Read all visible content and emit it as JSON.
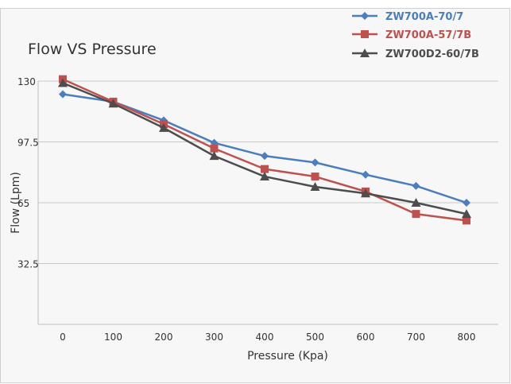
{
  "chart_data": {
    "type": "line",
    "title": "Flow VS Pressure",
    "xlabel": "Pressure (Kpa)",
    "ylabel": "Flow (Lpm)",
    "categories": [
      "0",
      "100",
      "200",
      "300",
      "400",
      "500",
      "600",
      "700",
      "800"
    ],
    "ylim": [
      0,
      130
    ],
    "yticks": [
      "130",
      "97.5",
      "65",
      "32.5"
    ],
    "grid": true,
    "legend_position": "top-right",
    "series": [
      {
        "name": "ZW700A-70/7",
        "color": "#4a7ebf",
        "marker": "diamond",
        "values": [
          123,
          119,
          109,
          97,
          90,
          86.5,
          80,
          74,
          65
        ]
      },
      {
        "name": "ZW700A-57/7B",
        "color": "#c0504d",
        "marker": "square",
        "values": [
          131,
          119,
          107,
          94,
          83,
          79,
          71,
          59,
          55.5
        ]
      },
      {
        "name": "ZW700D2-60/7B",
        "color": "#4d4d4d",
        "marker": "triangle",
        "values": [
          129,
          118,
          105,
          90,
          79,
          73.5,
          70,
          65,
          59
        ]
      }
    ]
  }
}
